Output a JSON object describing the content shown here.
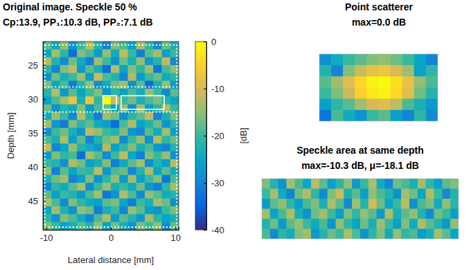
{
  "chart_data": [
    {
      "type": "heatmap",
      "title": "Original image. Speckle 50 %",
      "subtitle": "Cp:13.9, PP₁:10.3 dB, PP₂:7.1 dB",
      "x_label": "Lateral distance [mm]",
      "y_label": "Depth [mm]",
      "xlim": [
        -10.5,
        10.5
      ],
      "ylim": [
        21.5,
        49.3
      ],
      "xticks": [
        -10,
        0,
        10
      ],
      "yticks": [
        25,
        30,
        35,
        40,
        45
      ],
      "colorbar_lim": [
        -40,
        0
      ],
      "colorbar_ticks": [
        0,
        -10,
        -20,
        -30,
        -40
      ],
      "colorbar_label": "[dB]",
      "boxes": [
        {
          "x": [
            -10.2,
            10.2
          ],
          "y": [
            22,
            28.2
          ],
          "line_style": "dotted",
          "color": "white"
        },
        {
          "x": [
            -10.2,
            10.2
          ],
          "y": [
            31.9,
            48.9
          ],
          "line_style": "dotted",
          "color": "white"
        },
        {
          "x": [
            -1.2,
            0.86
          ],
          "y": [
            29.5,
            31.5
          ],
          "line_style": "solid",
          "color": "white"
        },
        {
          "x": [
            1.6,
            8.25
          ],
          "y": [
            29.5,
            31.5
          ],
          "line_style": "solid",
          "color": "white"
        }
      ],
      "cells": [
        [
          -18,
          -24,
          -15,
          -28,
          -20,
          -12,
          -22,
          -30,
          -16,
          -19,
          -26,
          -13,
          -21,
          -29,
          -17,
          -23
        ],
        [
          -25,
          -14,
          -21,
          -33,
          -16,
          -19,
          -27,
          -15,
          -24,
          -12,
          -20,
          -31,
          -18,
          -14,
          -26,
          -20
        ],
        [
          -13,
          -22,
          -29,
          -17,
          -24,
          -31,
          -14,
          -20,
          -28,
          -17,
          -23,
          -15,
          -27,
          -22,
          -12,
          -30
        ],
        [
          -21,
          -30,
          -16,
          -12,
          -27,
          -18,
          -23,
          -33,
          -13,
          -25,
          -16,
          -21,
          -14,
          -32,
          -19,
          -15
        ],
        [
          -28,
          -17,
          -23,
          -20,
          -14,
          -26,
          -11,
          -19,
          -22,
          -30,
          -13,
          -27,
          -20,
          -17,
          -24,
          -21
        ],
        [
          -16,
          -25,
          -19,
          -31,
          -22,
          -15,
          -29,
          -24,
          -17,
          -14,
          -28,
          -18,
          -33,
          -23,
          -15,
          -27
        ],
        [
          -22,
          -13,
          -27,
          -18,
          -25,
          -20,
          -16,
          -28,
          -21,
          -26,
          -19,
          -24,
          -15,
          -20,
          -29,
          -18
        ],
        [
          -26,
          -19,
          -14,
          -8,
          -23,
          -7,
          -21,
          0,
          -12,
          -20,
          -17,
          -23,
          -19,
          -16,
          -22,
          -25
        ],
        [
          -17,
          -28,
          -22,
          -24,
          -16,
          -27,
          -19,
          -18,
          -25,
          -15,
          -29,
          -14,
          -26,
          -21,
          -13,
          -20
        ],
        [
          -24,
          -15,
          -20,
          -29,
          -13,
          -22,
          -31,
          -14,
          -17,
          -28,
          -21,
          -18,
          -12,
          -30,
          -23,
          -16
        ],
        [
          -14,
          -27,
          -31,
          -16,
          -21,
          -18,
          -24,
          -26,
          -33,
          -19,
          -13,
          -25,
          -22,
          -17,
          -28,
          -21
        ],
        [
          -29,
          -20,
          -17,
          -23,
          -28,
          -12,
          -15,
          -20,
          -22,
          -16,
          -27,
          -30,
          -18,
          -24,
          -14,
          -26
        ],
        [
          -19,
          -23,
          -13,
          -26,
          -18,
          -30,
          -22,
          -17,
          -14,
          -29,
          -20,
          -15,
          -28,
          -13,
          -21,
          -17
        ],
        [
          -12,
          -30,
          -25,
          -15,
          -22,
          -24,
          -27,
          -13,
          -26,
          -21,
          -16,
          -23,
          -19,
          -27,
          -30,
          -22
        ],
        [
          -27,
          -16,
          -21,
          -19,
          -33,
          -14,
          -18,
          -29,
          -20,
          -12,
          -25,
          -31,
          -16,
          -20,
          -15,
          -28
        ],
        [
          -20,
          -22,
          -28,
          -13,
          -17,
          -26,
          -23,
          -16,
          -31,
          -24,
          -18,
          -14,
          -29,
          -22,
          -26,
          -13
        ],
        [
          -15,
          -31,
          -18,
          -25,
          -20,
          -21,
          -12,
          -27,
          -19,
          -17,
          -30,
          -22,
          -13,
          -25,
          -18,
          -24
        ],
        [
          -23,
          -17,
          -14,
          -30,
          -26,
          -16,
          -28,
          -21,
          -15,
          -27,
          -14,
          -26,
          -20,
          -16,
          -32,
          -19
        ],
        [
          -30,
          -21,
          -24,
          -18,
          -13,
          -29,
          -20,
          -15,
          -23,
          -20,
          -24,
          -17,
          -27,
          -31,
          -21,
          -14
        ],
        [
          -18,
          -26,
          -20,
          -22,
          -27,
          -19,
          -14,
          -32,
          -28,
          -13,
          -19,
          -29,
          -15,
          -18,
          -24,
          -22
        ],
        [
          -13,
          -19,
          -29,
          -16,
          -21,
          -24,
          -26,
          -18,
          -16,
          -25,
          -31,
          -20,
          -23,
          -14,
          -17,
          -29
        ],
        [
          -25,
          -14,
          -22,
          -28,
          -15,
          -17,
          -31,
          -23,
          -20,
          -30,
          -15,
          -18,
          -26,
          -28,
          -20,
          -16
        ],
        [
          -21,
          -28,
          -16,
          -19,
          -24,
          -30,
          -19,
          -13,
          -27,
          -18,
          -22,
          -27,
          -14,
          -21,
          -25,
          -23
        ],
        [
          -16,
          -20,
          -26,
          -23,
          -18,
          -22,
          -15,
          -25,
          -17,
          -23,
          -28,
          -16,
          -20,
          -15,
          -29,
          -18
        ]
      ]
    },
    {
      "type": "heatmap",
      "title": "Point scatterer",
      "subtitle": "max=0.0 dB",
      "tick_labels": false,
      "cells": [
        [
          -28,
          -24,
          -20,
          -18,
          -16,
          -15,
          -17,
          -20,
          -25,
          -30
        ],
        [
          -22,
          -30,
          -16,
          -11,
          -8,
          -7,
          -10,
          -14,
          -26,
          -21
        ],
        [
          -18,
          -14,
          -9,
          -4,
          -1,
          0,
          -3,
          -8,
          -15,
          -19
        ],
        [
          -20,
          -16,
          -11,
          -5,
          -2,
          -1,
          -4,
          -9,
          -17,
          -22
        ],
        [
          -26,
          -21,
          -18,
          -14,
          -10,
          -9,
          -12,
          -19,
          -23,
          -27
        ],
        [
          -32,
          -19,
          -24,
          -28,
          -20,
          -18,
          -26,
          -30,
          -21,
          -29
        ]
      ]
    },
    {
      "type": "heatmap",
      "title": "Speckle area at same depth",
      "subtitle": "max=-10.3 dB, μ=-18.1 dB",
      "tick_labels": false,
      "cells": [
        [
          -16,
          -22,
          -28,
          -14,
          -19,
          -25,
          -12,
          -18,
          -26,
          -21,
          -15,
          -27,
          -20,
          -13,
          -24,
          -30,
          -17,
          -19,
          -23,
          -14,
          -21,
          -26,
          -18,
          -16
        ],
        [
          -20,
          -14,
          -24,
          -30,
          -17,
          -13,
          -21,
          -29,
          -16,
          -11,
          -23,
          -18,
          -26,
          -15,
          -19,
          -22,
          -28,
          -14,
          -17,
          -25,
          -13,
          -20,
          -29,
          -22
        ],
        [
          -27,
          -18,
          -15,
          -21,
          -26,
          -19,
          -16,
          -23,
          -13,
          -18,
          -29,
          -14,
          -22,
          -10.3,
          -17,
          -25,
          -20,
          -12,
          -28,
          -19,
          -16,
          -24,
          -15,
          -21
        ],
        [
          -14,
          -25,
          -19,
          -13,
          -23,
          -28,
          -17,
          -14,
          -20,
          -26,
          -16,
          -21,
          -15,
          -18,
          -27,
          -13,
          -23,
          -18,
          -15,
          -22,
          -29,
          -17,
          -20,
          -26
        ],
        [
          -22,
          -17,
          -27,
          -18,
          -15,
          -20,
          -24,
          -19,
          -28,
          -15,
          -21,
          -25,
          -17,
          -23,
          -14,
          -20,
          -26,
          -16,
          -24,
          -13,
          -18,
          -22,
          -27,
          -15
        ],
        [
          -19,
          -29,
          -21,
          -24,
          -16,
          -14,
          -27,
          -22,
          -17,
          -20,
          -13,
          -19,
          -28,
          -21,
          -16,
          -24,
          -15,
          -21,
          -19,
          -27,
          -23,
          -14,
          -18,
          -25
        ]
      ]
    }
  ]
}
